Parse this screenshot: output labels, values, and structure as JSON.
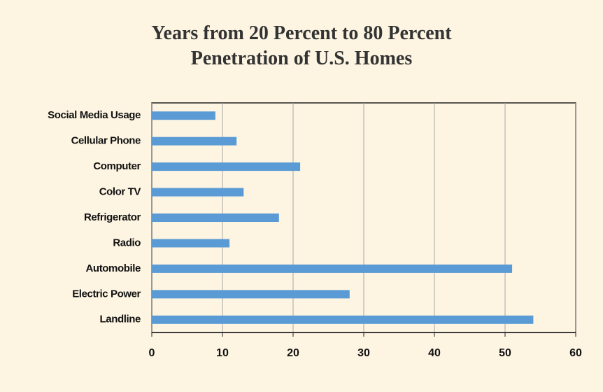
{
  "chart_data": {
    "type": "barh",
    "title": "Years from 20 Percent to 80 Percent Penetration of U.S. Homes",
    "categories": [
      "Social Media Usage",
      "Cellular Phone",
      "Computer",
      "Color TV",
      "Refrigerator",
      "Radio",
      "Automobile",
      "Electric Power",
      "Landline"
    ],
    "values": [
      9,
      12,
      21,
      13,
      18,
      11,
      51,
      28,
      54
    ],
    "color": "#5b9bd5",
    "xlim": [
      0,
      60
    ],
    "xticks": [
      0,
      10,
      20,
      30,
      40,
      50,
      60
    ],
    "grid": true
  }
}
